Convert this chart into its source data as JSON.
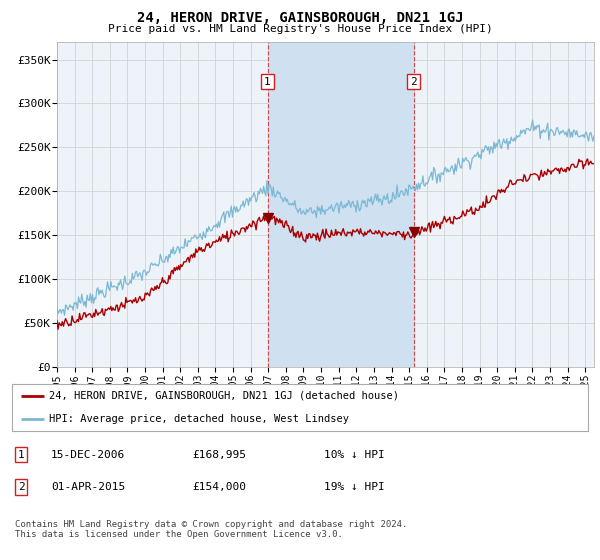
{
  "title": "24, HERON DRIVE, GAINSBOROUGH, DN21 1GJ",
  "subtitle": "Price paid vs. HM Land Registry's House Price Index (HPI)",
  "ylabel_ticks": [
    "£0",
    "£50K",
    "£100K",
    "£150K",
    "£200K",
    "£250K",
    "£300K",
    "£350K"
  ],
  "ytick_values": [
    0,
    50000,
    100000,
    150000,
    200000,
    250000,
    300000,
    350000
  ],
  "ylim": [
    0,
    370000
  ],
  "xlim_start": 1995.0,
  "xlim_end": 2025.5,
  "hpi_color": "#7bb8d4",
  "price_color": "#aa0000",
  "marker1_date": 2006.96,
  "marker1_price": 168995,
  "marker2_date": 2015.25,
  "marker2_price": 154000,
  "legend_line1": "24, HERON DRIVE, GAINSBOROUGH, DN21 1GJ (detached house)",
  "legend_line2": "HPI: Average price, detached house, West Lindsey",
  "table_row1": [
    "1",
    "15-DEC-2006",
    "£168,995",
    "10% ↓ HPI"
  ],
  "table_row2": [
    "2",
    "01-APR-2015",
    "£154,000",
    "19% ↓ HPI"
  ],
  "footnote": "Contains HM Land Registry data © Crown copyright and database right 2024.\nThis data is licensed under the Open Government Licence v3.0.",
  "background_color": "#ffffff",
  "plot_bg_color": "#eef3fa",
  "grid_color": "#cccccc",
  "span_color": "#cfe0f0"
}
